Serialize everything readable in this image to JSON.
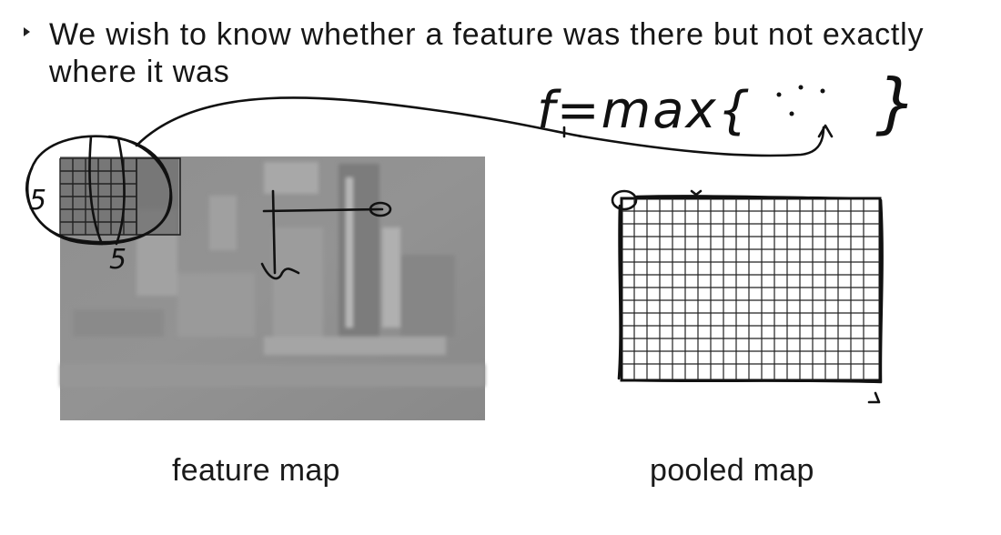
{
  "slide": {
    "bullet": "We wish to know whether a feature was there but not exactly where it was",
    "feature_caption": "feature map",
    "pooled_caption": "pooled map"
  },
  "annotations": {
    "formula": "f=max{",
    "formula_close": "}",
    "window_size_left": "5",
    "window_size_bottom": "5"
  },
  "colors": {
    "ink": "#111111",
    "feature_map_fill": "#8c8c8c",
    "grid_line": "#222222"
  }
}
